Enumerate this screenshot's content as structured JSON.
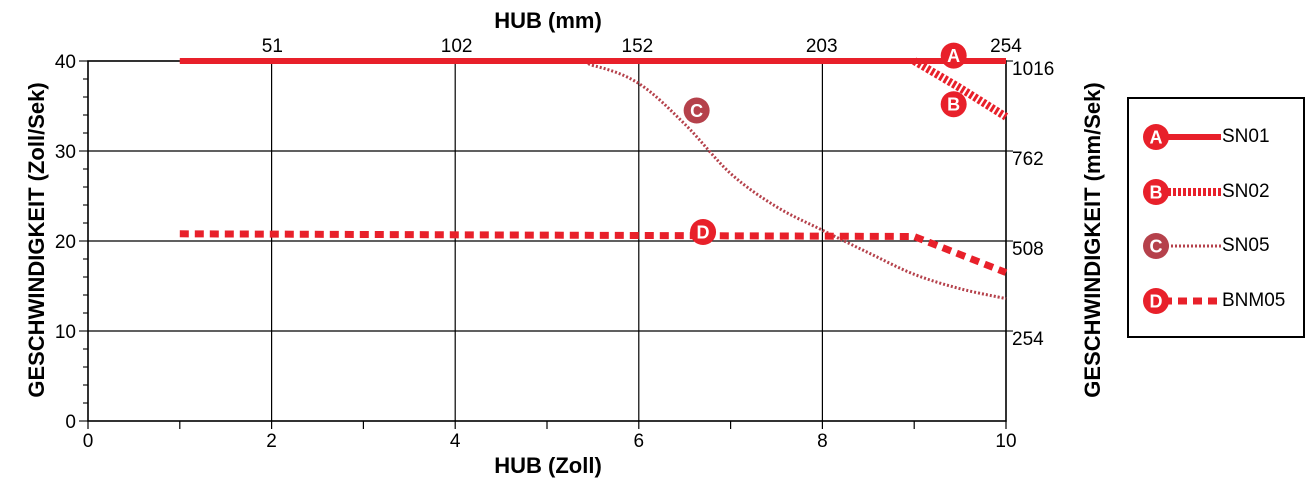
{
  "chart_data": {
    "type": "line",
    "title": "",
    "xlabel_bottom": "HUB (Zoll)",
    "xlabel_top": "HUB (mm)",
    "ylabel_left": "GESCHWINDIGKEIT (Zoll/Sek)",
    "ylabel_right": "GESCHWINDIGKEIT (mm/Sek)",
    "xlim": [
      0,
      10
    ],
    "ylim": [
      0,
      40
    ],
    "grid": true,
    "x_ticks_bottom": [
      "0",
      "2",
      "4",
      "6",
      "8",
      "10"
    ],
    "x_ticks_top": [
      "51",
      "102",
      "152",
      "203",
      "254"
    ],
    "y_ticks_left": [
      "0",
      "10",
      "20",
      "30",
      "40"
    ],
    "y_ticks_right": [
      "254",
      "508",
      "762",
      "1016"
    ],
    "legend_position": "right",
    "series": [
      {
        "name": "SN01",
        "marker": "A",
        "color": "#e8202a",
        "style": "solid",
        "x": [
          1,
          10
        ],
        "y": [
          40,
          40
        ]
      },
      {
        "name": "SN02",
        "marker": "B",
        "color": "#e8202a",
        "style": "dense-dash",
        "x": [
          9,
          9.5,
          10
        ],
        "y": [
          40,
          37,
          33.8
        ]
      },
      {
        "name": "SN05",
        "marker": "C",
        "color": "#b5414b",
        "style": "dotted",
        "x": [
          1,
          5,
          5.5,
          6,
          6.5,
          7,
          7.5,
          8,
          8.5,
          9,
          9.5,
          10
        ],
        "y": [
          40,
          40,
          39.5,
          37.5,
          33,
          27.5,
          23.8,
          21.2,
          18.7,
          16.3,
          14.7,
          13.6
        ]
      },
      {
        "name": "BNM05",
        "marker": "D",
        "color": "#e8202a",
        "style": "dashed",
        "x": [
          1,
          9,
          10
        ],
        "y": [
          20.8,
          20.5,
          16.5
        ]
      }
    ]
  },
  "legend": {
    "items": [
      {
        "marker": "A",
        "label": "SN01",
        "color": "#e8202a",
        "style": "solid"
      },
      {
        "marker": "B",
        "label": "SN02",
        "color": "#e8202a",
        "style": "dense-dash"
      },
      {
        "marker": "C",
        "label": "SN05",
        "color": "#b5414b",
        "style": "dotted"
      },
      {
        "marker": "D",
        "label": "BNM05",
        "color": "#e8202a",
        "style": "dashed"
      }
    ]
  }
}
